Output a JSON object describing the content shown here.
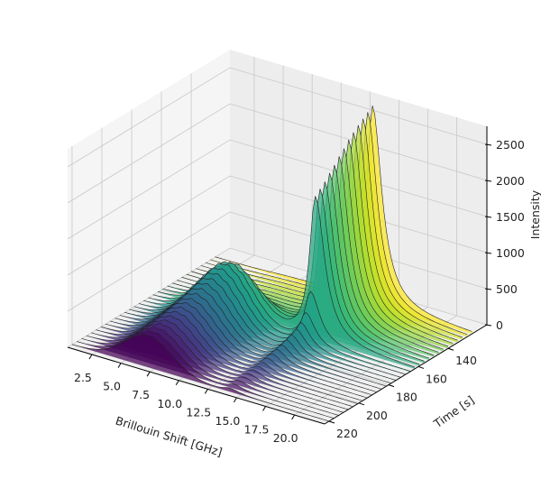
{
  "chart_data": {
    "type": "area",
    "projection": "3d",
    "xlabel": "Brillouin Shift [GHz]",
    "ylabel": "Time [s]",
    "zlabel": "Intensity",
    "xlim": [
      0.4,
      22.6
    ],
    "ylim": [
      114,
      223
    ],
    "zlim": [
      0,
      2750
    ],
    "xticks": [
      "2.5",
      "5.0",
      "7.5",
      "10.0",
      "12.5",
      "15.0",
      "17.5",
      "20.0"
    ],
    "yticks": [
      "140",
      "160",
      "180",
      "200",
      "220"
    ],
    "zticks": [
      "0",
      "500",
      "1000",
      "1500",
      "2000",
      "2500"
    ],
    "grid": true,
    "colormap": "viridis",
    "times": [
      124,
      127.2,
      130.4,
      133.6,
      136.8,
      140,
      143.2,
      146.4,
      149.6,
      152.8,
      156,
      159.2,
      162.4,
      165.6,
      168.8,
      172,
      175.2,
      178.4,
      181.6,
      184.8,
      188,
      191.2,
      194.4,
      197.6,
      200.8,
      204,
      207.2,
      210.4,
      213.6,
      216.8,
      220
    ],
    "peak_low": {
      "center_ghz": 7.0,
      "width_ghz": 2.0,
      "heights": [
        20,
        20,
        25,
        25,
        30,
        30,
        40,
        60,
        100,
        200,
        380,
        560,
        700,
        760,
        780,
        760,
        730,
        700,
        670,
        640,
        610,
        580,
        560,
        540,
        520,
        500,
        480,
        470,
        460,
        450,
        440
      ]
    },
    "peak_high": {
      "center_ghz": 14.0,
      "width_ghz": 0.6,
      "heights": [
        2750,
        2700,
        2650,
        2600,
        2540,
        2480,
        2400,
        2330,
        2250,
        2180,
        2100,
        2040,
        1980,
        700,
        450,
        350,
        300,
        260,
        230,
        200,
        180,
        160,
        140,
        120,
        110,
        100,
        90,
        80,
        70,
        60,
        50
      ]
    }
  }
}
